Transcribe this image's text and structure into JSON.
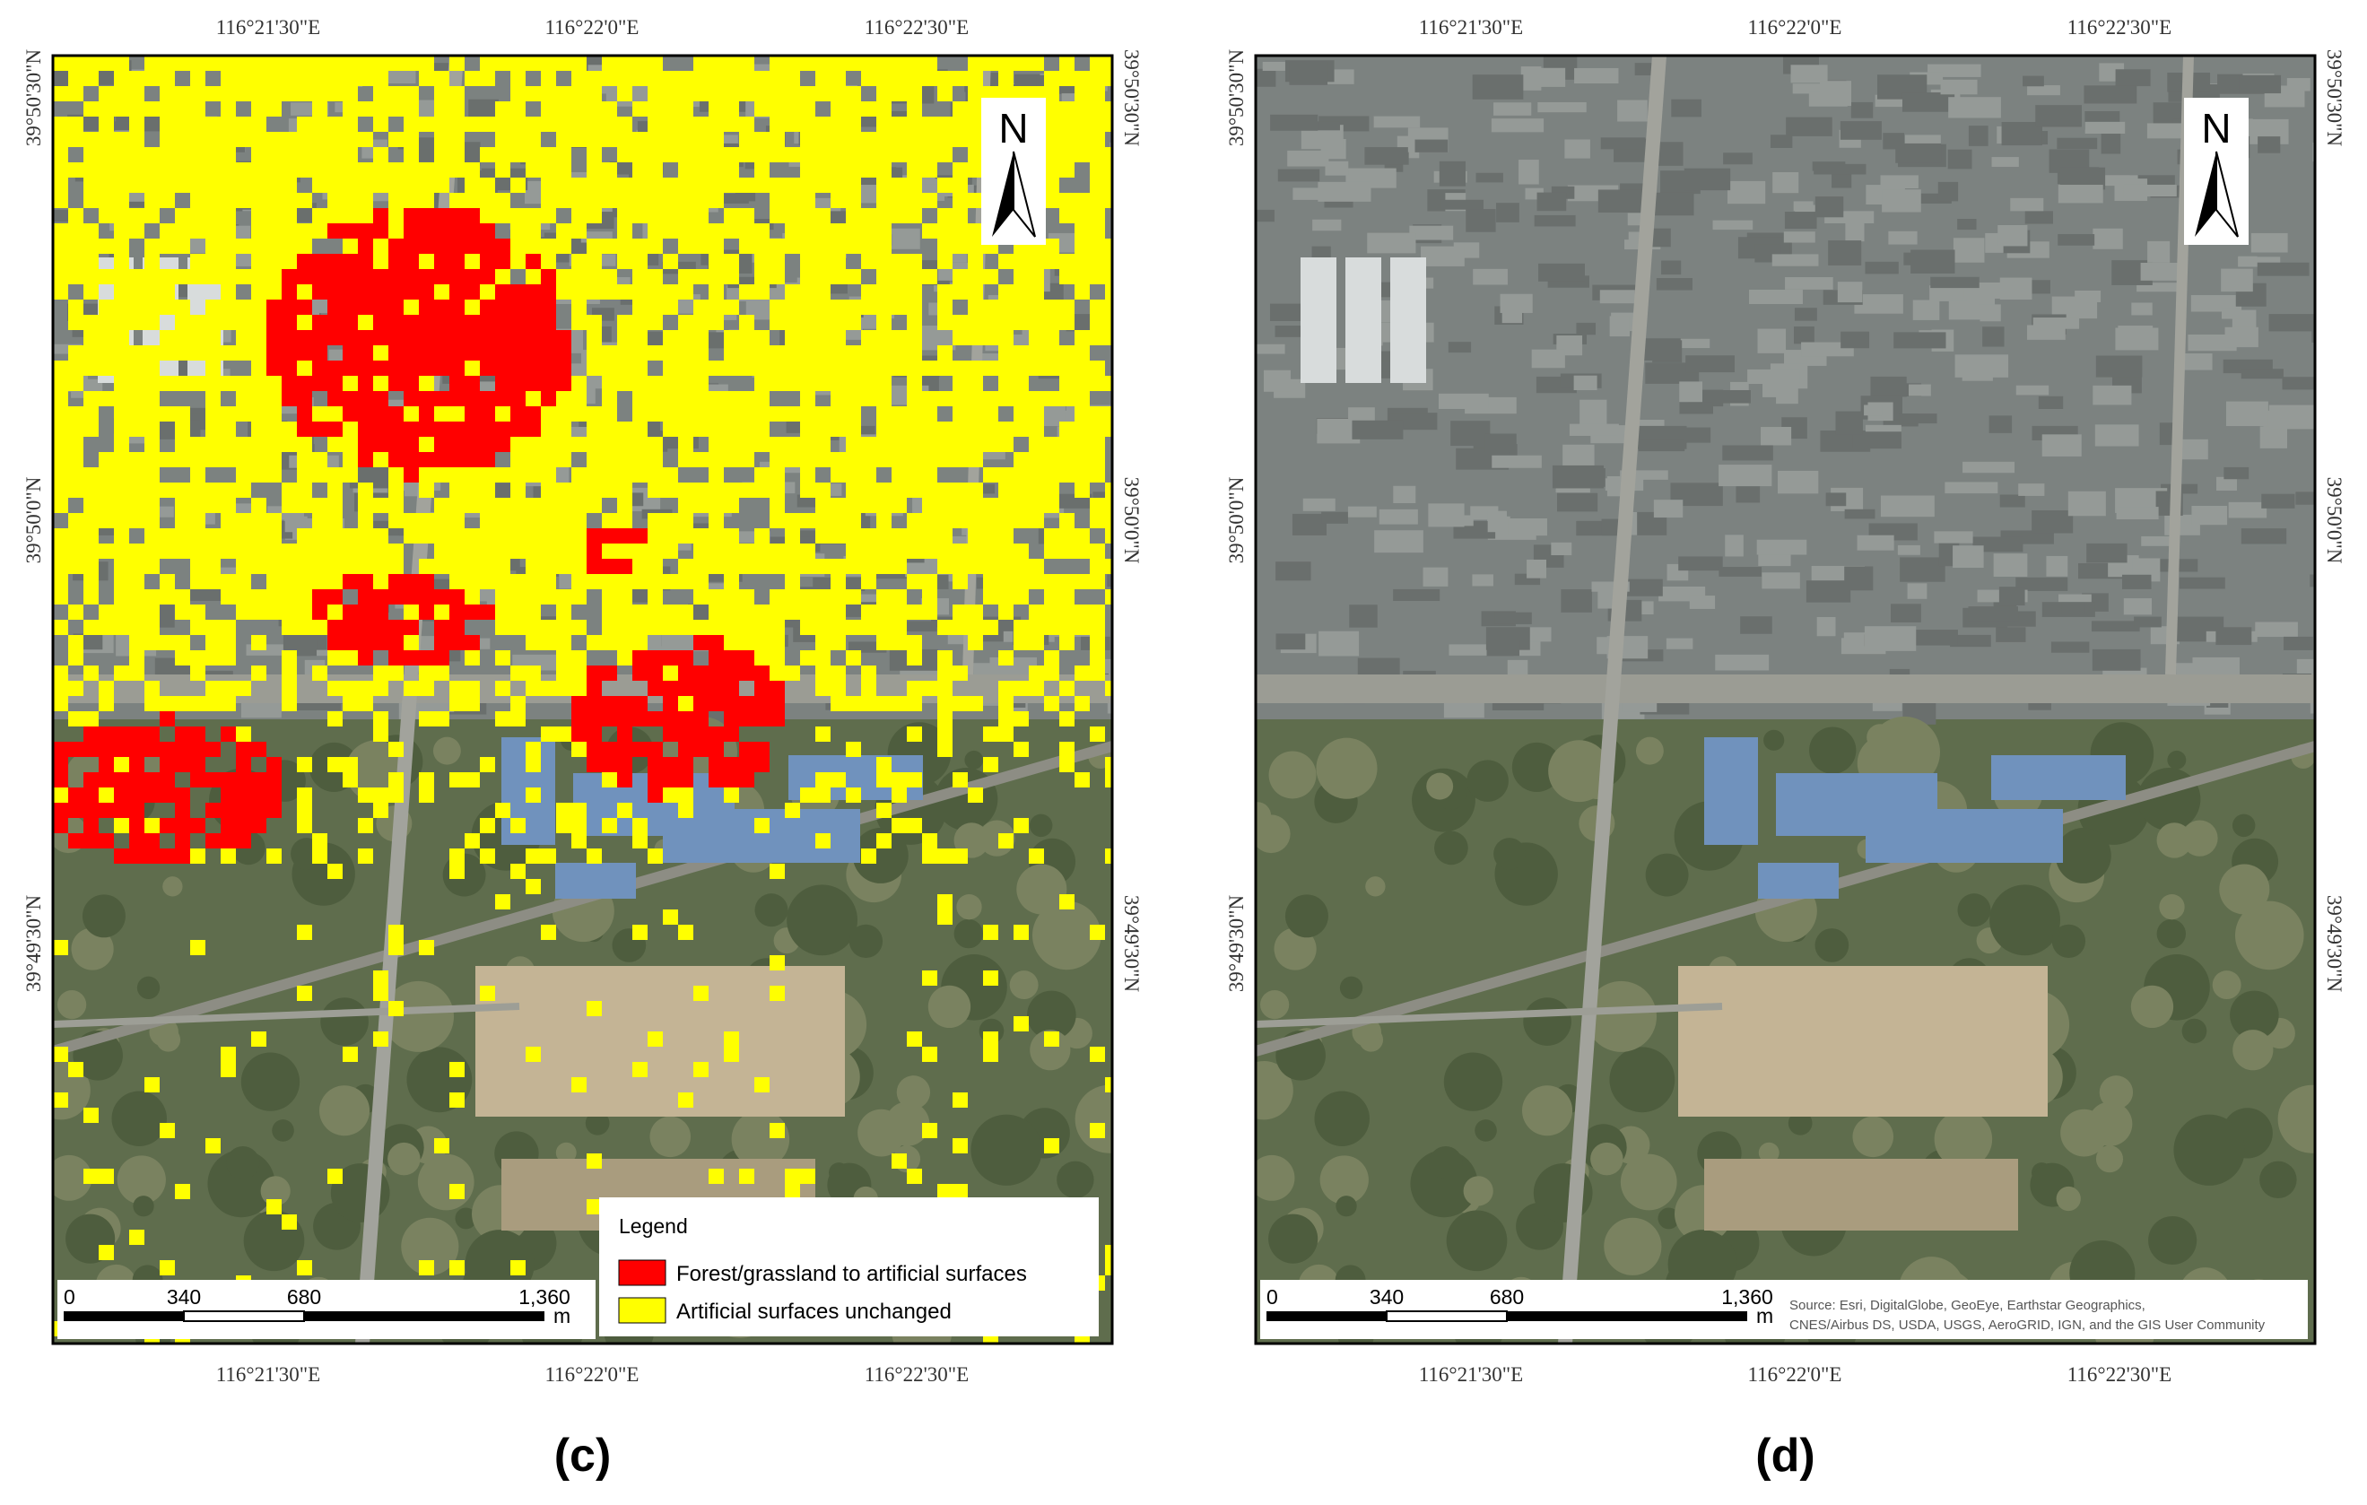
{
  "panels": [
    {
      "x_labels": [
        "116°21'30\"E",
        "116°22'0\"E",
        "116°22'30\"E"
      ],
      "y_labels": [
        "39°50'30\"N",
        "39°50'0\"N",
        "39°49'30\"N"
      ],
      "north": "N",
      "scale_bar": {
        "labels": [
          "0",
          "340",
          "680",
          "1,360"
        ],
        "unit": "m"
      },
      "legend": {
        "title": "Legend",
        "items": [
          {
            "label": "Forest/grassland to artificial surfaces",
            "color": "#ff0000"
          },
          {
            "label": "Artificial surfaces unchanged",
            "color": "#ffff00"
          }
        ]
      },
      "caption": "(c)"
    },
    {
      "x_labels": [
        "116°21'30\"E",
        "116°22'0\"E",
        "116°22'30\"E"
      ],
      "y_labels": [
        "39°50'30\"N",
        "39°50'0\"N",
        "39°49'30\"N"
      ],
      "north": "N",
      "scale_bar": {
        "labels": [
          "0",
          "340",
          "680",
          "1,360"
        ],
        "unit": "m"
      },
      "attribution": [
        "Source: Esri, DigitalGlobe, GeoEye, Earthstar Geographics,",
        "CNES/Airbus DS, USDA, USGS, AeroGRID, IGN, and the GIS User Community"
      ],
      "caption": "(d)"
    }
  ]
}
